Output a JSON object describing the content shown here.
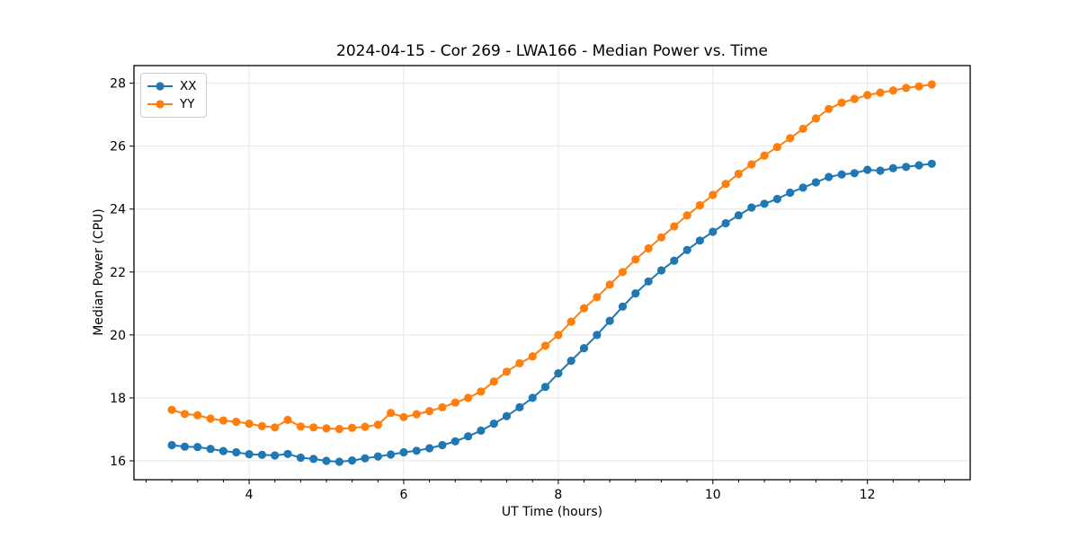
{
  "figure": {
    "title": "2024-04-15 - Cor 269 - LWA166 - Median Power vs. Time",
    "xlabel": "UT Time (hours)",
    "ylabel": "Median Power (CPU)"
  },
  "chart_data": {
    "type": "line",
    "title": "2024-04-15 - Cor 269 - LWA166 - Median Power vs. Time",
    "xlabel": "UT Time (hours)",
    "ylabel": "Median Power (CPU)",
    "grid": true,
    "legend_position": "upper left",
    "xlim": [
      2.51,
      13.33
    ],
    "ylim": [
      15.4,
      28.56
    ],
    "x_ticks": [
      4,
      6,
      8,
      10,
      12
    ],
    "x_tick_labels": [
      "4",
      "6",
      "8",
      "10",
      "12"
    ],
    "x_minor_tick_step": 0.33333,
    "y_ticks": [
      16,
      18,
      20,
      22,
      24,
      26,
      28
    ],
    "y_tick_labels": [
      "16",
      "18",
      "20",
      "22",
      "24",
      "26",
      "28"
    ],
    "colors": {
      "frame": "#000000",
      "grid": "#e6e6e6",
      "background": "#ffffff"
    },
    "x": [
      3.0,
      3.167,
      3.333,
      3.5,
      3.667,
      3.833,
      4.0,
      4.167,
      4.333,
      4.5,
      4.667,
      4.833,
      5.0,
      5.167,
      5.333,
      5.5,
      5.667,
      5.833,
      6.0,
      6.167,
      6.333,
      6.5,
      6.667,
      6.833,
      7.0,
      7.167,
      7.333,
      7.5,
      7.667,
      7.833,
      8.0,
      8.167,
      8.333,
      8.5,
      8.667,
      8.833,
      9.0,
      9.167,
      9.333,
      9.5,
      9.667,
      9.833,
      10.0,
      10.167,
      10.333,
      10.5,
      10.667,
      10.833,
      11.0,
      11.167,
      11.333,
      11.5,
      11.667,
      11.833,
      12.0,
      12.167,
      12.333,
      12.5,
      12.667,
      12.833
    ],
    "series": [
      {
        "name": "XX",
        "color": "#1f77b4",
        "values": [
          16.5,
          16.45,
          16.44,
          16.38,
          16.31,
          16.27,
          16.21,
          16.19,
          16.17,
          16.22,
          16.1,
          16.06,
          16.0,
          15.97,
          16.01,
          16.08,
          16.14,
          16.2,
          16.27,
          16.32,
          16.4,
          16.5,
          16.62,
          16.78,
          16.96,
          17.18,
          17.42,
          17.7,
          18.0,
          18.35,
          18.78,
          19.18,
          19.58,
          20.0,
          20.45,
          20.9,
          21.32,
          21.7,
          22.05,
          22.36,
          22.7,
          23.0,
          23.28,
          23.55,
          23.8,
          24.05,
          24.17,
          24.32,
          24.52,
          24.68,
          24.85,
          25.02,
          25.1,
          25.14,
          25.25,
          25.22,
          25.3,
          25.34,
          25.39,
          25.44
        ]
      },
      {
        "name": "YY",
        "color": "#ff7f0e",
        "values": [
          17.62,
          17.49,
          17.45,
          17.34,
          17.28,
          17.24,
          17.18,
          17.1,
          17.06,
          17.3,
          17.09,
          17.06,
          17.03,
          17.01,
          17.05,
          17.08,
          17.15,
          17.52,
          17.39,
          17.48,
          17.58,
          17.7,
          17.85,
          18.0,
          18.2,
          18.52,
          18.83,
          19.1,
          19.32,
          19.66,
          20.0,
          20.42,
          20.85,
          21.2,
          21.6,
          22.0,
          22.4,
          22.75,
          23.1,
          23.45,
          23.8,
          24.12,
          24.45,
          24.8,
          25.12,
          25.42,
          25.7,
          25.97,
          26.25,
          26.55,
          26.88,
          27.18,
          27.38,
          27.5,
          27.62,
          27.7,
          27.77,
          27.85,
          27.9,
          27.96
        ]
      }
    ]
  }
}
